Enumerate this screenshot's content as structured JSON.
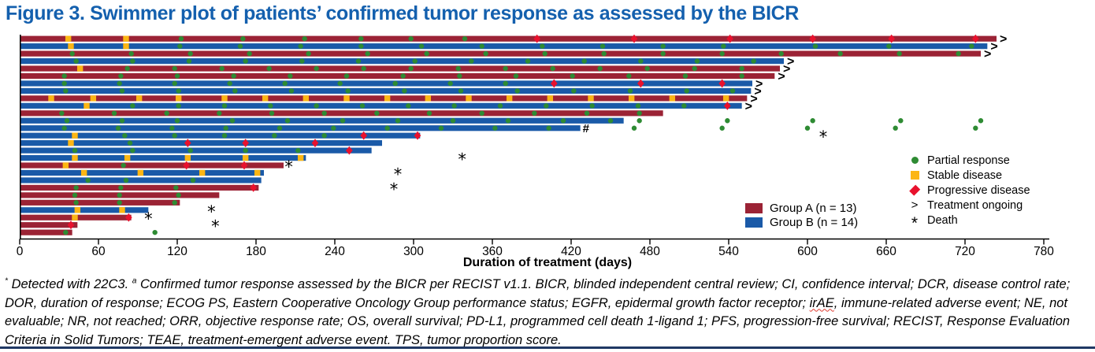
{
  "title": "Figure 3. Swimmer plot of patients’ confirmed tumor response as assessed by the BICR",
  "colors": {
    "title_blue": "#1460AE",
    "group_a_red": "#9B2335",
    "group_b_blue": "#1A5AA8",
    "partial_response_green": "#2E8B33",
    "stable_disease_yellow": "#FCB614",
    "progressive_disease_red": "#E8112D",
    "axis_black": "#000000",
    "bottom_rule_navy": "#203864"
  },
  "chart_data": {
    "type": "swimmer-bar",
    "title": "Swimmer plot of patients’ confirmed tumor response as assessed by the BICR",
    "xlabel": "Duration of treatment (days)",
    "xlim": [
      0,
      780
    ],
    "x_ticks": [
      0,
      60,
      120,
      180,
      240,
      300,
      360,
      420,
      480,
      540,
      600,
      660,
      720,
      780
    ],
    "grid": false,
    "legend_position": "right",
    "groups": [
      {
        "id": "A",
        "label": "Group A (n = 13)",
        "color": "#9B2335"
      },
      {
        "id": "B",
        "label": "Group B (n = 14)",
        "color": "#1A5AA8"
      }
    ],
    "marker_legend": [
      {
        "key": "pr",
        "label": "Partial response",
        "shape": "circle",
        "color": "#2E8B33"
      },
      {
        "key": "sd",
        "label": "Stable disease",
        "shape": "square",
        "color": "#FCB614"
      },
      {
        "key": "pd",
        "label": "Progressive disease",
        "shape": "diamond",
        "color": "#E8112D"
      },
      {
        "key": "ongoing",
        "label": "Treatment ongoing",
        "shape": "glyph",
        "glyph": ">"
      },
      {
        "key": "death",
        "label": "Death",
        "shape": "glyph",
        "glyph": "*"
      }
    ],
    "patients": [
      {
        "group": "A",
        "end": 744,
        "ongoing": true,
        "sd": [
          37,
          81
        ],
        "pr": [
          123,
          170,
          217,
          260,
          298,
          339
        ],
        "pd": [
          394,
          468,
          541,
          604,
          664,
          728
        ]
      },
      {
        "group": "B",
        "end": 737,
        "ongoing": true,
        "sd": [
          39,
          81
        ],
        "pr": [
          122,
          168,
          214,
          260,
          306,
          352,
          398,
          444,
          490,
          536,
          606,
          662,
          725
        ]
      },
      {
        "group": "A",
        "end": 732,
        "ongoing": true,
        "pr": [
          40,
          85,
          130,
          175,
          220,
          265,
          310,
          355,
          400,
          445,
          490,
          535,
          580,
          625,
          670,
          715
        ]
      },
      {
        "group": "B",
        "end": 582,
        "ongoing": true,
        "pr": [
          43,
          86,
          129,
          172,
          215,
          258,
          301,
          344,
          387,
          430,
          473,
          516,
          559
        ]
      },
      {
        "group": "A",
        "end": 579,
        "ongoing": true,
        "sd": [
          46
        ],
        "pr": [
          82,
          118,
          154,
          190,
          226,
          262,
          298,
          334,
          370,
          406,
          442,
          478,
          514,
          550
        ]
      },
      {
        "group": "A",
        "end": 575,
        "ongoing": true,
        "pr": [
          34,
          77,
          120,
          163,
          206,
          249,
          292,
          335,
          378,
          421,
          464,
          507,
          550
        ]
      },
      {
        "group": "B",
        "end": 558,
        "ongoing": true,
        "pr": [
          34,
          76,
          118,
          160,
          202,
          244,
          286,
          328,
          370
        ],
        "pd": [
          407,
          473,
          535
        ]
      },
      {
        "group": "B",
        "end": 557,
        "ongoing": true,
        "pr": [
          35,
          78,
          121,
          164,
          207,
          250,
          293,
          336,
          379,
          422,
          465,
          508,
          543
        ]
      },
      {
        "group": "A",
        "end": 554,
        "ongoing": true,
        "sd": [
          24,
          56,
          91,
          121,
          156,
          187,
          218,
          249,
          280,
          311,
          342,
          373,
          404,
          435,
          466,
          497,
          538
        ]
      },
      {
        "group": "B",
        "end": 550,
        "ongoing": true,
        "sd": [
          51
        ],
        "pr": [
          86,
          121,
          156,
          191,
          226,
          261,
          296,
          331,
          366,
          401,
          436,
          471,
          506
        ],
        "pd": [
          539
        ]
      },
      {
        "group": "A",
        "end": 490,
        "pr": [
          32,
          72,
          112,
          152,
          192,
          232,
          272,
          312,
          352,
          392,
          432,
          472
        ]
      },
      {
        "group": "B",
        "end": 460,
        "pr": [
          36,
          78,
          120,
          162,
          204,
          246,
          288,
          330,
          372,
          414,
          450
        ],
        "post_pr": [
          472,
          539,
          604,
          671,
          732
        ]
      },
      {
        "group": "B",
        "end": 427,
        "hash": true,
        "pr": [
          34,
          75,
          116,
          157,
          198,
          239,
          280,
          321,
          362,
          403
        ],
        "post_pr": [
          468,
          535,
          600,
          667,
          728
        ]
      },
      {
        "group": "B",
        "end": 305,
        "sd": [
          42
        ],
        "pr": [
          80,
          118,
          156,
          194,
          232
        ],
        "pd": [
          262,
          303
        ],
        "death": [
          612
        ]
      },
      {
        "group": "B",
        "end": 276,
        "sd": [
          39
        ],
        "pr": [
          84
        ],
        "pd": [
          128,
          172,
          225
        ]
      },
      {
        "group": "B",
        "end": 268,
        "pr": [
          42,
          86,
          130,
          172,
          212
        ],
        "pd": [
          251
        ]
      },
      {
        "group": "B",
        "end": 218,
        "sd": [
          42,
          82,
          128,
          172,
          214
        ],
        "death": [
          337
        ]
      },
      {
        "group": "A",
        "end": 201,
        "sd": [
          35
        ],
        "pr": [
          79
        ],
        "pd": [
          127,
          171
        ],
        "death": [
          205
        ]
      },
      {
        "group": "B",
        "end": 186,
        "sd": [
          49,
          92,
          139,
          181
        ],
        "death": [
          288
        ]
      },
      {
        "group": "B",
        "end": 184,
        "pr": [
          52,
          81,
          132
        ]
      },
      {
        "group": "A",
        "end": 182,
        "pr": [
          43,
          77,
          119
        ],
        "pd": [
          178
        ],
        "death": [
          285
        ]
      },
      {
        "group": "A",
        "end": 152,
        "pr": [
          42,
          76,
          121
        ]
      },
      {
        "group": "A",
        "end": 122,
        "pr": [
          43,
          76,
          118
        ]
      },
      {
        "group": "B",
        "end": 98,
        "sd": [
          44,
          78
        ],
        "death": [
          146
        ]
      },
      {
        "group": "A",
        "end": 85,
        "sd": [
          42
        ],
        "pd": [
          83
        ],
        "death": [
          98
        ]
      },
      {
        "group": "A",
        "end": 44,
        "pd": [
          39
        ],
        "death": [
          149
        ]
      },
      {
        "group": "A",
        "end": 40,
        "pr": [
          35
        ],
        "post_pr": [
          103
        ]
      }
    ]
  },
  "footnote_segments": [
    {
      "t": "*",
      "sup": true
    },
    {
      "t": " Detected with 22C3. "
    },
    {
      "t": "a",
      "sup": true
    },
    {
      "t": " Confirmed tumor response assessed by the BICR per RECIST v1.1. BICR, blinded independent central review; CI, confidence interval; DCR, disease control rate; DOR, duration of response; ECOG PS, Eastern Cooperative Oncology Group performance status; EGFR, epidermal growth factor receptor; "
    },
    {
      "t": "irAE",
      "wavy": true
    },
    {
      "t": ", immune-related adverse event; NE, not evaluable; NR, not reached; ORR, objective response rate; OS, overall survival; PD-L1, programmed cell death 1-ligand 1; PFS, progression-free survival; RECIST, Response Evaluation Criteria in Solid Tumors; TEAE, treatment-emergent adverse event. TPS, tumor proportion score."
    }
  ]
}
